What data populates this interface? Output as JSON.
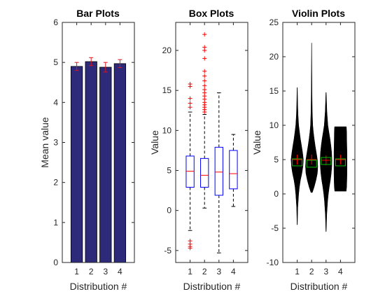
{
  "chart_data": [
    {
      "type": "bar",
      "title": "Bar Plots",
      "xlabel": "Distribution #",
      "ylabel": "Mean value",
      "categories": [
        "1",
        "2",
        "3",
        "4"
      ],
      "values": [
        4.9,
        5.02,
        4.88,
        4.97
      ],
      "error": [
        0.1,
        0.1,
        0.12,
        0.1
      ],
      "ylim": [
        0,
        6
      ],
      "yticks": [
        "0",
        "1",
        "2",
        "3",
        "4",
        "5",
        "6"
      ],
      "colors": {
        "bar": "#2e2a7a",
        "error": "#e0141e"
      }
    },
    {
      "type": "box",
      "title": "Box Plots",
      "xlabel": "Distribution #",
      "ylabel": "Value",
      "categories": [
        "1",
        "2",
        "3",
        "4"
      ],
      "ylim": [
        -6.5,
        23.5
      ],
      "yticks": [
        "-5",
        "0",
        "5",
        "10",
        "15",
        "20"
      ],
      "boxes": [
        {
          "q1": 2.9,
          "median": 4.9,
          "q3": 6.8,
          "whisker_low": -2.5,
          "whisker_high": 12.3,
          "outliers": [
            -3.8,
            -4.2,
            -4.5,
            -4.7,
            12.9,
            13.4,
            14.0,
            15.5,
            15.8
          ]
        },
        {
          "q1": 2.9,
          "median": 4.4,
          "q3": 6.5,
          "whisker_low": 0.3,
          "whisker_high": 12.0,
          "outliers": [
            12.3,
            12.6,
            12.9,
            13.2,
            13.5,
            13.9,
            14.3,
            14.7,
            15.1,
            15.6,
            16.2,
            16.8,
            17.4,
            19.0,
            20.0,
            20.4,
            22.0
          ]
        },
        {
          "q1": 1.9,
          "median": 4.8,
          "q3": 7.9,
          "whisker_low": -5.3,
          "whisker_high": 14.7,
          "outliers": []
        },
        {
          "q1": 2.7,
          "median": 4.6,
          "q3": 7.5,
          "whisker_low": 0.5,
          "whisker_high": 9.5,
          "outliers": []
        }
      ],
      "colors": {
        "box": "#0000ff",
        "median": "#ff0000",
        "whisker": "#000000",
        "outlier": "#ff0000"
      }
    },
    {
      "type": "violin",
      "title": "Violin Plots",
      "xlabel": "Distribution #",
      "ylabel": "Value",
      "categories": [
        "1",
        "2",
        "3",
        "4"
      ],
      "ylim": [
        -10,
        25
      ],
      "yticks": [
        "-10",
        "-5",
        "0",
        "5",
        "10",
        "15",
        "20",
        "25"
      ],
      "violins": [
        {
          "mean": 5.0,
          "median": 4.6,
          "profile": [
            [
              -4.5,
              0.02
            ],
            [
              -2,
              0.08
            ],
            [
              0,
              0.2
            ],
            [
              1,
              0.3
            ],
            [
              2,
              0.45
            ],
            [
              3,
              0.65
            ],
            [
              4,
              0.8
            ],
            [
              5,
              0.85
            ],
            [
              6,
              0.75
            ],
            [
              7,
              0.6
            ],
            [
              8,
              0.45
            ],
            [
              9,
              0.32
            ],
            [
              10,
              0.2
            ],
            [
              11.5,
              0.12
            ],
            [
              13,
              0.07
            ],
            [
              15.5,
              0.02
            ]
          ]
        },
        {
          "mean": 5.0,
          "median": 4.4,
          "profile": [
            [
              0.2,
              0.1
            ],
            [
              1,
              0.35
            ],
            [
              2,
              0.6
            ],
            [
              3,
              0.8
            ],
            [
              4,
              0.85
            ],
            [
              5,
              0.8
            ],
            [
              6,
              0.65
            ],
            [
              7,
              0.5
            ],
            [
              8,
              0.36
            ],
            [
              9,
              0.24
            ],
            [
              10,
              0.16
            ],
            [
              12,
              0.09
            ],
            [
              15,
              0.05
            ],
            [
              18,
              0.03
            ],
            [
              22,
              0.01
            ]
          ]
        },
        {
          "mean": 4.9,
          "median": 4.8,
          "profile": [
            [
              -5.5,
              0.02
            ],
            [
              -3,
              0.1
            ],
            [
              -1,
              0.22
            ],
            [
              0,
              0.32
            ],
            [
              1,
              0.45
            ],
            [
              2,
              0.6
            ],
            [
              3,
              0.72
            ],
            [
              4,
              0.8
            ],
            [
              5,
              0.82
            ],
            [
              6,
              0.78
            ],
            [
              7,
              0.68
            ],
            [
              8,
              0.55
            ],
            [
              9,
              0.4
            ],
            [
              10,
              0.25
            ],
            [
              12,
              0.12
            ],
            [
              14.8,
              0.02
            ]
          ]
        },
        {
          "mean": 5.0,
          "median": 4.6,
          "profile": [
            [
              0.4,
              0.8
            ],
            [
              1,
              0.85
            ],
            [
              2,
              0.88
            ],
            [
              3,
              0.9
            ],
            [
              4,
              0.9
            ],
            [
              5,
              0.9
            ],
            [
              6,
              0.9
            ],
            [
              7,
              0.88
            ],
            [
              8,
              0.86
            ],
            [
              9,
              0.85
            ],
            [
              9.8,
              0.82
            ]
          ]
        }
      ],
      "colors": {
        "violin": "#000000",
        "mean": "#ff0000",
        "median": "#00c000"
      }
    }
  ]
}
